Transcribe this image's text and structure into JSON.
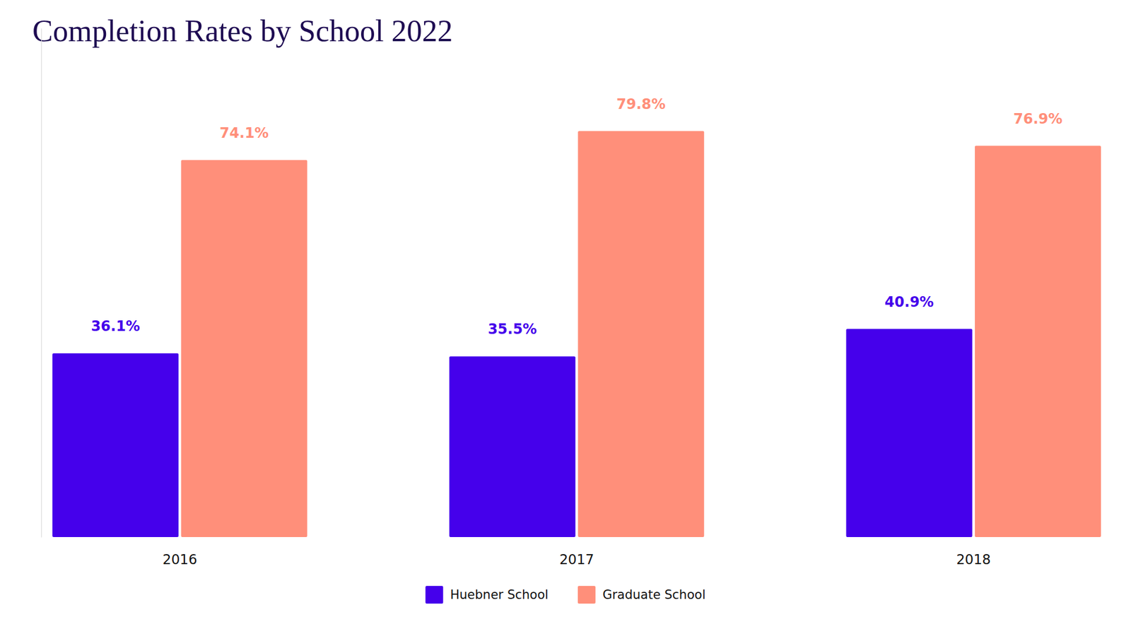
{
  "chart_data": {
    "type": "bar",
    "title": "Completion Rates by School 2022",
    "categories": [
      "2016",
      "2017",
      "2018"
    ],
    "series": [
      {
        "name": "Huebner School",
        "color": "#4500eb",
        "values": [
          36.1,
          35.5,
          40.9
        ],
        "value_labels": [
          "36.1%",
          "35.5%",
          "40.9%"
        ]
      },
      {
        "name": "Graduate School",
        "color": "#ff8f7a",
        "values": [
          74.1,
          79.8,
          76.9
        ],
        "value_labels": [
          "74.1%",
          "79.8%",
          "76.9%"
        ]
      }
    ],
    "ylim": [
      0,
      100
    ],
    "data_labels": true,
    "tick_labels": "x",
    "legend": "bottom",
    "grid": false
  }
}
